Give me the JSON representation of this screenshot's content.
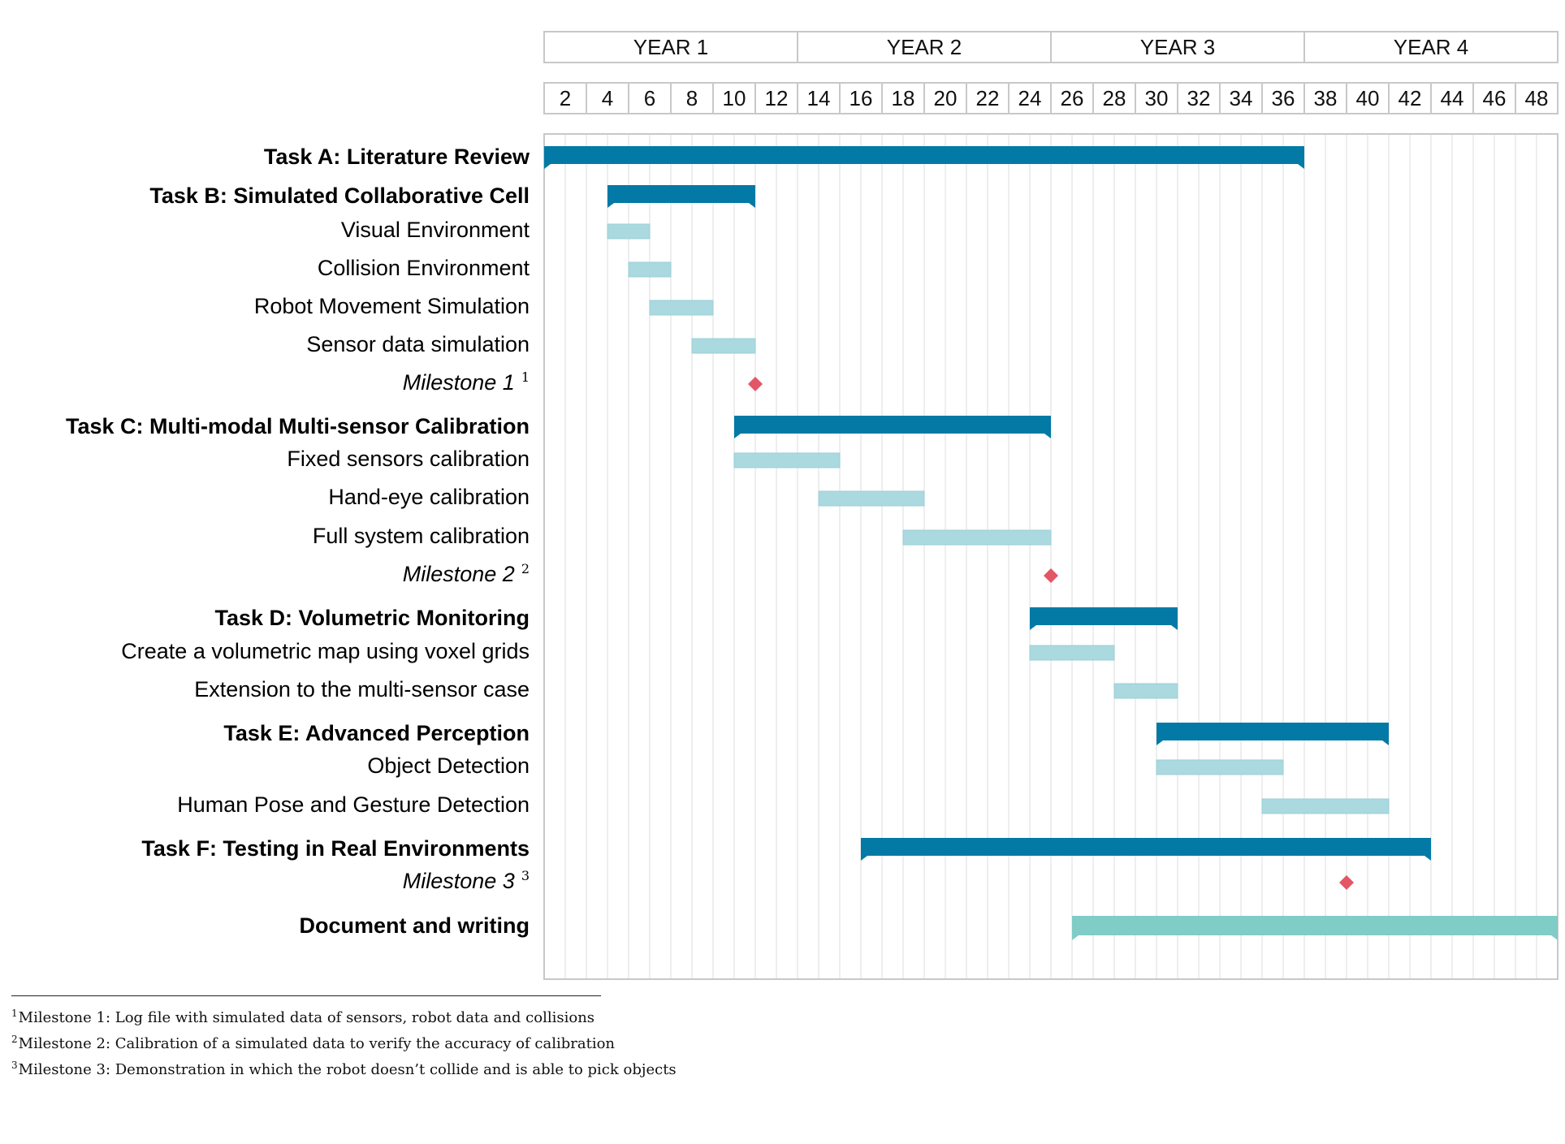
{
  "chart_data": {
    "type": "gantt",
    "x_unit": "month",
    "x_range": [
      0,
      48
    ],
    "year_headers": [
      "YEAR 1",
      "YEAR 2",
      "YEAR 3",
      "YEAR 4"
    ],
    "month_ticks": [
      "2",
      "4",
      "6",
      "8",
      "10",
      "12",
      "14",
      "16",
      "18",
      "20",
      "22",
      "24",
      "26",
      "28",
      "30",
      "32",
      "34",
      "36",
      "38",
      "40",
      "42",
      "44",
      "46",
      "48"
    ],
    "grid": true,
    "colors": {
      "task": "#0379a6",
      "subtask": "#aad9e0",
      "document": "#80ccc6",
      "milestone": "#e35666",
      "grid": "#e3e3e3",
      "frame": "#c8c8c8"
    },
    "rows": [
      {
        "kind": "task",
        "label": "Task A: Literature Review",
        "start": 0,
        "end": 36
      },
      {
        "kind": "task",
        "label": "Task B: Simulated Collaborative Cell",
        "start": 3,
        "end": 10
      },
      {
        "kind": "subtask",
        "label": "Visual Environment",
        "start": 3,
        "end": 5
      },
      {
        "kind": "subtask",
        "label": "Collision Environment",
        "start": 4,
        "end": 6
      },
      {
        "kind": "subtask",
        "label": "Robot Movement Simulation",
        "start": 5,
        "end": 8
      },
      {
        "kind": "subtask",
        "label": "Sensor data simulation",
        "start": 7,
        "end": 10
      },
      {
        "kind": "milestone",
        "label": "Milestone 1",
        "sup": "1",
        "at": 10
      },
      {
        "kind": "task",
        "label": "Task C: Multi-modal Multi-sensor Calibration",
        "start": 9,
        "end": 24
      },
      {
        "kind": "subtask",
        "label": "Fixed sensors calibration",
        "start": 9,
        "end": 14
      },
      {
        "kind": "subtask",
        "label": "Hand-eye calibration",
        "start": 13,
        "end": 18
      },
      {
        "kind": "subtask",
        "label": "Full system calibration",
        "start": 17,
        "end": 24
      },
      {
        "kind": "milestone",
        "label": "Milestone 2",
        "sup": "2",
        "at": 24
      },
      {
        "kind": "task",
        "label": "Task D: Volumetric Monitoring",
        "start": 23,
        "end": 30
      },
      {
        "kind": "subtask",
        "label": "Create a volumetric map using voxel grids",
        "start": 23,
        "end": 27
      },
      {
        "kind": "subtask",
        "label": "Extension to the multi-sensor case",
        "start": 27,
        "end": 30
      },
      {
        "kind": "task",
        "label": "Task E: Advanced Perception",
        "start": 29,
        "end": 40
      },
      {
        "kind": "subtask",
        "label": "Object Detection",
        "start": 29,
        "end": 35
      },
      {
        "kind": "subtask",
        "label": "Human Pose and Gesture Detection",
        "start": 34,
        "end": 40
      },
      {
        "kind": "task",
        "label": "Task F: Testing in Real Environments",
        "start": 15,
        "end": 42
      },
      {
        "kind": "milestone",
        "label": "Milestone 3",
        "sup": "3",
        "at": 38
      },
      {
        "kind": "document",
        "label": "Document and writing",
        "start": 25,
        "end": 48
      }
    ]
  },
  "footnotes": [
    {
      "mark": "1",
      "text": "Milestone 1: Log file with simulated data of sensors, robot data and collisions"
    },
    {
      "mark": "2",
      "text": "Milestone 2: Calibration of a simulated data to verify the accuracy of calibration"
    },
    {
      "mark": "3",
      "text": "Milestone 3: Demonstration in which the robot doesn’t collide and is able to pick objects"
    }
  ]
}
